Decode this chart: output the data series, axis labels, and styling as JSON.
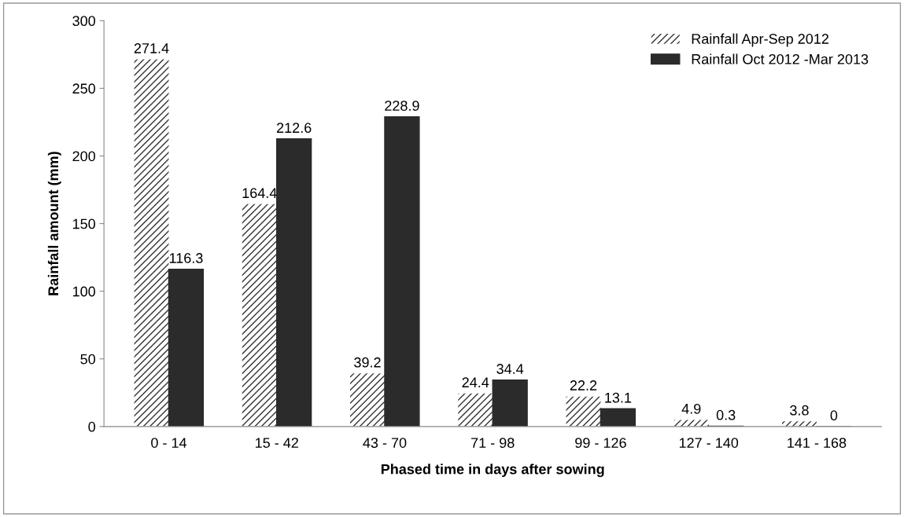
{
  "chart_data": {
    "type": "bar",
    "xlabel": "Phased time in days after sowing",
    "ylabel": "Rainfall amount (mm)",
    "categories": [
      "0 - 14",
      "15 - 42",
      "43 - 70",
      "71 - 98",
      "99 - 126",
      "127 - 140",
      "141 - 168"
    ],
    "series": [
      {
        "name": "Rainfall Apr-Sep 2012",
        "color": "#333333",
        "values": [
          271.4,
          164.4,
          39.2,
          24.4,
          22.2,
          4.9,
          3.8
        ]
      },
      {
        "name": "Rainfall Oct 2012 -Mar 2013",
        "color": "#2b2b2b",
        "values": [
          116.3,
          212.6,
          228.9,
          34.4,
          13.1,
          0.3,
          0
        ]
      }
    ],
    "ylim": [
      0,
      300
    ],
    "yticks": [
      0,
      50,
      100,
      150,
      200,
      250,
      300
    ],
    "grid": false,
    "legend": "top right",
    "data_labels": true
  }
}
